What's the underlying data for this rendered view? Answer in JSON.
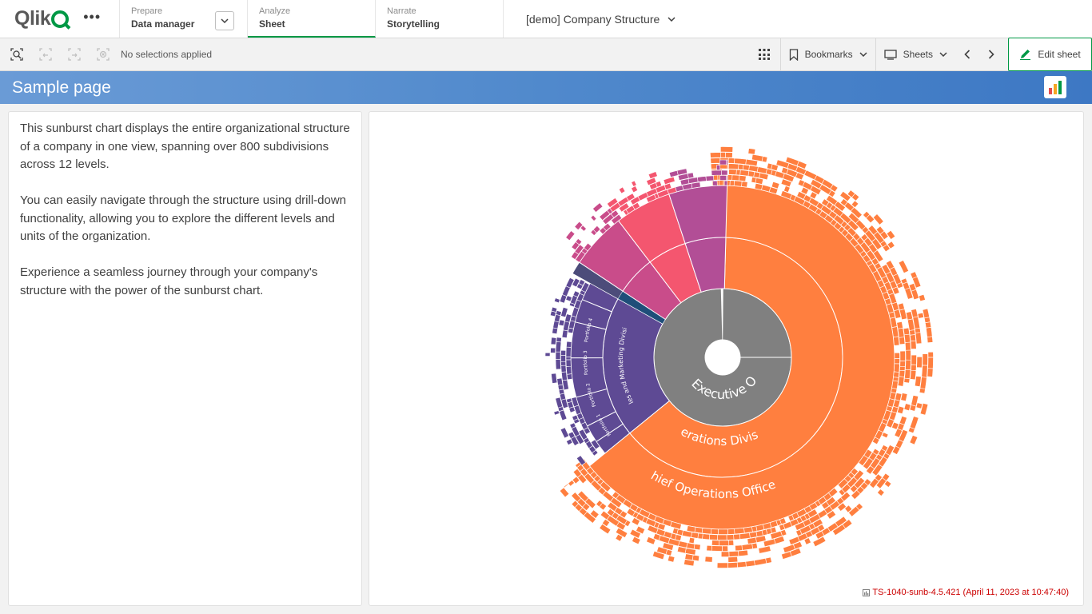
{
  "brand": {
    "logo_text": "Qlik",
    "accent": "#009845"
  },
  "nav": {
    "tabs": [
      {
        "small": "Prepare",
        "big": "Data manager"
      },
      {
        "small": "Analyze",
        "big": "Sheet"
      },
      {
        "small": "Narrate",
        "big": "Storytelling"
      }
    ],
    "app_title": "[demo] Company Structure"
  },
  "toolbar": {
    "selection_status": "No selections applied",
    "bookmarks_label": "Bookmarks",
    "sheets_label": "Sheets",
    "edit_label": "Edit sheet"
  },
  "sheet": {
    "title": "Sample page",
    "title_bar_color": "#5089cc"
  },
  "description": {
    "paragraphs": [
      "This sunburst chart displays the entire organizational structure of a company in one view, spanning over 800 subdivisions across 12 levels.",
      "You can easily navigate through the structure using drill-down functionality, allowing you to explore the different levels and units of the organization.",
      "Experience a seamless journey through your company's structure with the power of the sunburst chart."
    ]
  },
  "chart_data": {
    "type": "sunburst",
    "root": {
      "name": "Chief Executive Officer",
      "color": "#808080"
    },
    "branches": [
      {
        "name": "Chief Operations Officer",
        "share": 0.637,
        "color": "#ff7f3f",
        "children": [
          {
            "name": "Operations Division"
          }
        ]
      },
      {
        "name": "Sales and Marketing Division",
        "share": 0.19,
        "color": "#5e4a94",
        "children": [
          {
            "name": "Portfolio 1"
          },
          {
            "name": "Portfolio 2"
          },
          {
            "name": "Portfolio 3"
          },
          {
            "name": "Portfolio 4"
          }
        ]
      },
      {
        "name": "",
        "share": 0.012,
        "color": "#1f4e79",
        "children": []
      },
      {
        "name": "",
        "share": 0.161,
        "color": "#e44b7c",
        "children": [
          {
            "name": ""
          },
          {
            "name": ""
          },
          {
            "name": ""
          }
        ]
      }
    ],
    "levels": 12
  },
  "footer": {
    "version_text": "TS-1040-sunb-4.5.421 (April 11, 2023 at 10:47:40)"
  }
}
